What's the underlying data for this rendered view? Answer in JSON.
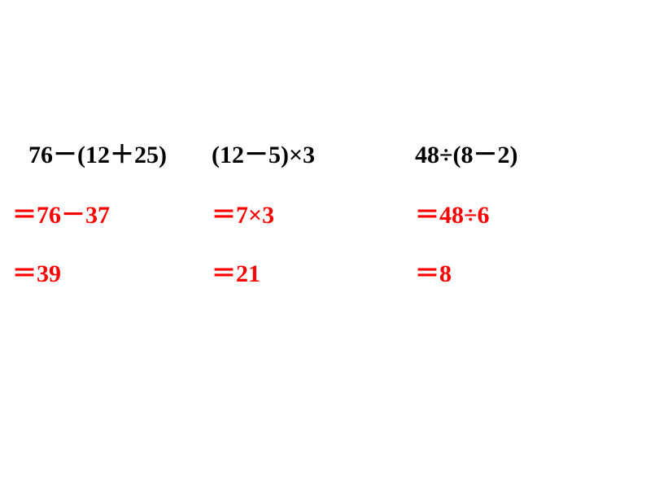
{
  "problems": {
    "p1": "76－(12＋25)",
    "p2": "(12－5)×3",
    "p3": "48÷(8－2)"
  },
  "steps": {
    "p1_step1": "＝76－37",
    "p1_step2": "＝39",
    "p2_step1": "＝7×3",
    "p2_step2": "＝21",
    "p3_step1": "＝48÷6",
    "p3_step2": "＝8"
  },
  "colors": {
    "problem_color": "#000000",
    "step_color": "#ff0000",
    "background": "#ffffff"
  },
  "typography": {
    "problem_fontsize": 30,
    "step_fontsize": 30,
    "font_weight": "bold"
  }
}
